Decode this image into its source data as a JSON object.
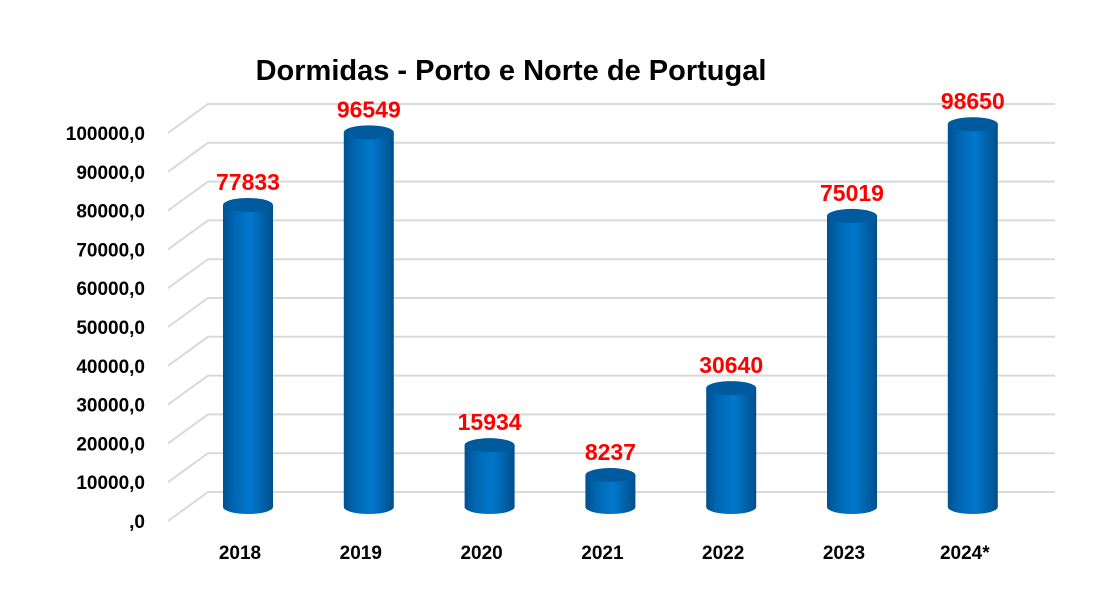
{
  "chart_data": {
    "type": "bar",
    "title": "Dormidas - Porto e Norte de Portugal",
    "xlabel": "",
    "ylabel": "",
    "categories": [
      "2018",
      "2019",
      "2020",
      "2021",
      "2022",
      "2023",
      "2024*"
    ],
    "values": [
      77833,
      96549,
      15934,
      8237,
      30640,
      75019,
      98650
    ],
    "data_labels": [
      "77833",
      "96549",
      "15934",
      "8237",
      "30640",
      "75019",
      "98650"
    ],
    "ylim": [
      0,
      100000
    ],
    "yticks": [
      0,
      10000,
      20000,
      30000,
      40000,
      50000,
      60000,
      70000,
      80000,
      90000,
      100000
    ],
    "ytick_labels": [
      ",0",
      "10000,0",
      "20000,0",
      "30000,0",
      "40000,0",
      "50000,0",
      "60000,0",
      "70000,0",
      "80000,0",
      "90000,0",
      "100000,0"
    ],
    "grid": true,
    "legend": "none",
    "bar_style": "3d-cylinder",
    "colors": {
      "bar": "#0070c0",
      "bar_dark": "#005a9e",
      "label": "#ff0000",
      "grid": "#d9d9d9"
    }
  }
}
